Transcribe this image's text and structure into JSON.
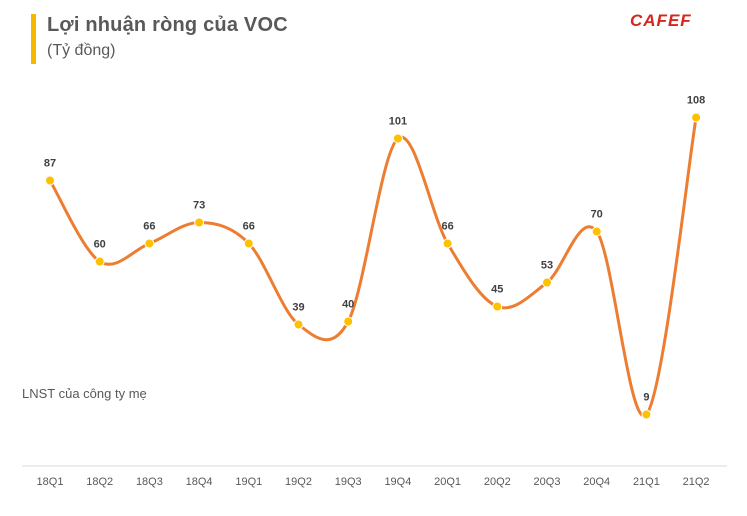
{
  "header": {
    "title": "Lợi nhuận ròng của VOC",
    "subtitle": "(Tỷ đồng)",
    "logo_text": "CAFEF"
  },
  "chart_data": {
    "type": "line",
    "title": "Lợi nhuận ròng của VOC",
    "subtitle": "(Tỷ đồng)",
    "categories": [
      "18Q1",
      "18Q2",
      "18Q3",
      "18Q4",
      "19Q1",
      "19Q2",
      "19Q3",
      "19Q4",
      "20Q1",
      "20Q2",
      "20Q3",
      "20Q4",
      "21Q1",
      "21Q2"
    ],
    "series": [
      {
        "name": "LNST của công ty mẹ",
        "values": [
          87,
          60,
          66,
          73,
          66,
          39,
          40,
          101,
          66,
          45,
          53,
          70,
          9,
          108
        ]
      }
    ],
    "xlabel": "",
    "ylabel": "",
    "ylim": [
      0,
      115
    ],
    "grid": false,
    "legend": "left",
    "colors": {
      "line": "#ed7d31",
      "marker": "#ffc000",
      "axis": "#d9d9d9"
    }
  }
}
